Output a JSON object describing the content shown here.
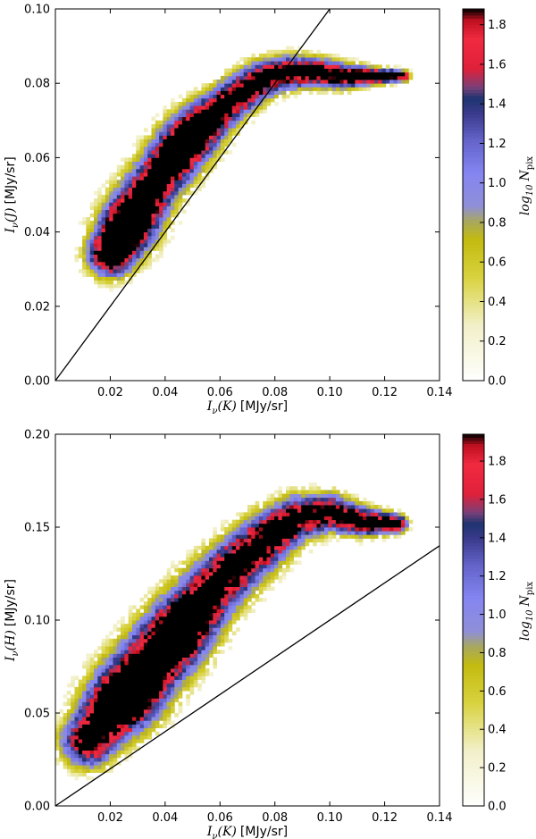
{
  "chart_data": [
    {
      "type": "heatmap",
      "name": "top-panel",
      "xlabel_main": "I",
      "xlabel_sub": "ν",
      "xlabel_arg": "(K)",
      "xlabel_unit": "[MJy/sr]",
      "ylabel_main": "I",
      "ylabel_sub": "ν",
      "ylabel_arg": "(J)",
      "ylabel_unit": "[MJy/sr]",
      "xlim": [
        0.0,
        0.14
      ],
      "ylim": [
        0.0,
        0.1
      ],
      "xticks": [
        0.02,
        0.04,
        0.06,
        0.08,
        0.1,
        0.12,
        0.14
      ],
      "xtick_labels": [
        "0.02",
        "0.04",
        "0.06",
        "0.08",
        "0.10",
        "0.12",
        "0.14"
      ],
      "yticks": [
        0.0,
        0.02,
        0.04,
        0.06,
        0.08,
        0.1
      ],
      "ytick_labels": [
        "0.00",
        "0.02",
        "0.04",
        "0.06",
        "0.08",
        "0.10"
      ],
      "reference_line": {
        "x": [
          0.0,
          0.1
        ],
        "y": [
          0.0,
          0.1
        ]
      },
      "density_ridge": [
        {
          "x": 0.02,
          "y": 0.034,
          "w": 0.006
        },
        {
          "x": 0.026,
          "y": 0.041,
          "w": 0.0065
        },
        {
          "x": 0.035,
          "y": 0.052,
          "w": 0.007
        },
        {
          "x": 0.045,
          "y": 0.062,
          "w": 0.0065
        },
        {
          "x": 0.055,
          "y": 0.07,
          "w": 0.006
        },
        {
          "x": 0.065,
          "y": 0.076,
          "w": 0.0055
        },
        {
          "x": 0.075,
          "y": 0.081,
          "w": 0.005
        },
        {
          "x": 0.085,
          "y": 0.083,
          "w": 0.0045
        },
        {
          "x": 0.095,
          "y": 0.083,
          "w": 0.004
        },
        {
          "x": 0.105,
          "y": 0.082,
          "w": 0.0035
        },
        {
          "x": 0.115,
          "y": 0.082,
          "w": 0.0025
        },
        {
          "x": 0.127,
          "y": 0.082,
          "w": 0.0015
        }
      ],
      "peaks": [
        {
          "x": 0.026,
          "y": 0.041,
          "amp": 1.88
        },
        {
          "x": 0.048,
          "y": 0.064,
          "amp": 1.62
        }
      ],
      "colorbar": {
        "label": "log",
        "label_sub1": "10",
        "label_main": "N",
        "label_sub2": "pix",
        "min": 0.0,
        "max": 1.88,
        "ticks": [
          0.0,
          0.2,
          0.4,
          0.6,
          0.8,
          1.0,
          1.2,
          1.4,
          1.6,
          1.8
        ],
        "tick_labels": [
          "0.0",
          "0.2",
          "0.4",
          "0.6",
          "0.8",
          "1.0",
          "1.2",
          "1.4",
          "1.6",
          "1.8"
        ]
      }
    },
    {
      "type": "heatmap",
      "name": "bottom-panel",
      "xlabel_main": "I",
      "xlabel_sub": "ν",
      "xlabel_arg": "(K)",
      "xlabel_unit": "[MJy/sr]",
      "ylabel_main": "I",
      "ylabel_sub": "ν",
      "ylabel_arg": "(H)",
      "ylabel_unit": "[MJy/sr]",
      "xlim": [
        0.0,
        0.14
      ],
      "ylim": [
        0.0,
        0.2
      ],
      "xticks": [
        0.02,
        0.04,
        0.06,
        0.08,
        0.1,
        0.12,
        0.14
      ],
      "xtick_labels": [
        "0.02",
        "0.04",
        "0.06",
        "0.08",
        "0.10",
        "0.12",
        "0.14"
      ],
      "yticks": [
        0.0,
        0.05,
        0.1,
        0.15,
        0.2
      ],
      "ytick_labels": [
        "0.00",
        "0.05",
        "0.10",
        "0.15",
        "0.20"
      ],
      "reference_line": {
        "x": [
          0.0,
          0.14
        ],
        "y": [
          0.0,
          0.14
        ]
      },
      "density_ridge": [
        {
          "x": 0.012,
          "y": 0.035,
          "w": 0.007
        },
        {
          "x": 0.02,
          "y": 0.05,
          "w": 0.0085
        },
        {
          "x": 0.028,
          "y": 0.063,
          "w": 0.009
        },
        {
          "x": 0.038,
          "y": 0.082,
          "w": 0.009
        },
        {
          "x": 0.048,
          "y": 0.1,
          "w": 0.0085
        },
        {
          "x": 0.058,
          "y": 0.118,
          "w": 0.008
        },
        {
          "x": 0.068,
          "y": 0.132,
          "w": 0.0075
        },
        {
          "x": 0.078,
          "y": 0.145,
          "w": 0.007
        },
        {
          "x": 0.088,
          "y": 0.155,
          "w": 0.006
        },
        {
          "x": 0.1,
          "y": 0.158,
          "w": 0.005
        },
        {
          "x": 0.112,
          "y": 0.153,
          "w": 0.004
        },
        {
          "x": 0.125,
          "y": 0.152,
          "w": 0.0025
        }
      ],
      "peaks": [
        {
          "x": 0.027,
          "y": 0.062,
          "amp": 1.94
        },
        {
          "x": 0.045,
          "y": 0.092,
          "amp": 1.7
        }
      ],
      "colorbar": {
        "label": "log",
        "label_sub1": "10",
        "label_main": "N",
        "label_sub2": "pix",
        "min": 0.0,
        "max": 1.94,
        "ticks": [
          0.0,
          0.2,
          0.4,
          0.6,
          0.8,
          1.0,
          1.2,
          1.4,
          1.6,
          1.8
        ],
        "tick_labels": [
          "0.0",
          "0.2",
          "0.4",
          "0.6",
          "0.8",
          "1.0",
          "1.2",
          "1.4",
          "1.6",
          "1.8"
        ]
      }
    }
  ],
  "colormap_stops": [
    {
      "v": 0.0,
      "color": "#ffffff"
    },
    {
      "v": 0.15,
      "color": "#f2f0c8"
    },
    {
      "v": 0.28,
      "color": "#d8d23e"
    },
    {
      "v": 0.38,
      "color": "#c3bb10"
    },
    {
      "v": 0.43,
      "color": "#a8a860"
    },
    {
      "v": 0.47,
      "color": "#8f8fd8"
    },
    {
      "v": 0.56,
      "color": "#8585f2"
    },
    {
      "v": 0.65,
      "color": "#6262c8"
    },
    {
      "v": 0.72,
      "color": "#3a3a8c"
    },
    {
      "v": 0.76,
      "color": "#1e3470"
    },
    {
      "v": 0.79,
      "color": "#7a4078"
    },
    {
      "v": 0.84,
      "color": "#e0203a"
    },
    {
      "v": 0.92,
      "color": "#f02a40"
    },
    {
      "v": 0.97,
      "color": "#c01020"
    },
    {
      "v": 1.0,
      "color": "#000000"
    }
  ]
}
